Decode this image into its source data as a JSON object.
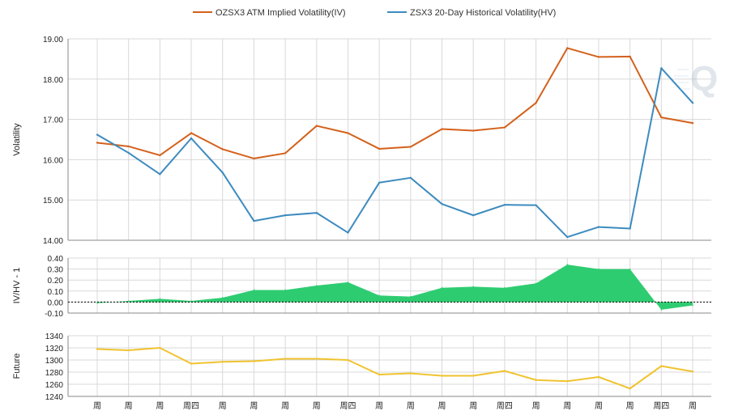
{
  "legend": [
    {
      "label": "OZSX3 ATM Implied Volatility(IV)",
      "color": "#d4611c"
    },
    {
      "label": "ZSX3 20-Day Historical Volatility(HV)",
      "color": "#3d8bbf"
    }
  ],
  "colors": {
    "iv": "#d4611c",
    "hv": "#3d8bbf",
    "ratio_fill": "#2ecc71",
    "future": "#f0c330",
    "grid": "#d8d8d8",
    "axis": "#888888"
  },
  "x_labels": [
    "周",
    "周",
    "周",
    "周四",
    "周",
    "周",
    "周",
    "周",
    "周四",
    "周",
    "周",
    "周",
    "周",
    "周四",
    "周",
    "周",
    "周",
    "周",
    "周四",
    "周"
  ],
  "chart_data": [
    {
      "type": "line",
      "ylabel": "Volatility",
      "ylim": [
        14,
        19
      ],
      "yticks": [
        "14.00",
        "15.00",
        "16.00",
        "17.00",
        "18.00",
        "19.00"
      ],
      "grid": true,
      "series": [
        {
          "name": "OZSX3 ATM Implied Volatility(IV)",
          "values": [
            16.42,
            16.33,
            16.11,
            16.66,
            16.26,
            16.03,
            16.16,
            16.84,
            16.66,
            16.27,
            16.32,
            16.76,
            16.72,
            16.8,
            17.41,
            18.77,
            18.55,
            18.56,
            17.05,
            16.91
          ]
        },
        {
          "name": "ZSX3 20-Day Historical Volatility(HV)",
          "values": [
            16.62,
            16.17,
            15.64,
            16.53,
            15.68,
            14.48,
            14.62,
            14.68,
            14.19,
            15.43,
            15.55,
            14.9,
            14.62,
            14.88,
            14.87,
            14.08,
            14.33,
            14.29,
            18.27,
            17.41
          ]
        }
      ]
    },
    {
      "type": "area",
      "ylabel": "IV/HV - 1",
      "ylim": [
        -0.1,
        0.4
      ],
      "yticks": [
        "-0.10",
        "0.00",
        "0.10",
        "0.20",
        "0.30",
        "0.40"
      ],
      "grid": true,
      "series": [
        {
          "values": [
            -0.01,
            0.01,
            0.03,
            0.01,
            0.04,
            0.11,
            0.11,
            0.15,
            0.18,
            0.06,
            0.05,
            0.13,
            0.14,
            0.13,
            0.17,
            0.34,
            0.3,
            0.3,
            -0.07,
            -0.03
          ]
        }
      ]
    },
    {
      "type": "line",
      "ylabel": "Future",
      "ylim": [
        1240,
        1340
      ],
      "yticks": [
        "1240",
        "1260",
        "1280",
        "1300",
        "1320",
        "1340"
      ],
      "grid": true,
      "series": [
        {
          "values": [
            1318,
            1316,
            1320,
            1294,
            1297,
            1298,
            1302,
            1302,
            1300,
            1276,
            1278,
            1274,
            1274,
            1282,
            1267,
            1265,
            1272,
            1253,
            1290,
            1281
          ]
        }
      ]
    }
  ]
}
